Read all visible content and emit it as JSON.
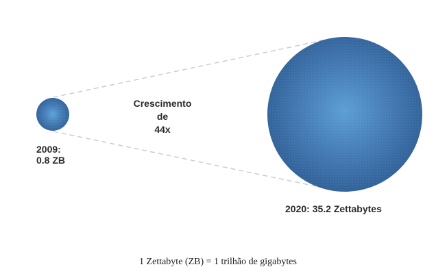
{
  "small_circle": {
    "year_label": "2009:",
    "value_label": "0.8 ZB",
    "value_zb": 0.8
  },
  "growth_label": {
    "line1": "Crescimento",
    "line2": "de",
    "line3": "44x"
  },
  "large_circle": {
    "label": "2020: 35.2 Zettabytes",
    "value_zb": 35.2
  },
  "footnote": "1 Zettabyte (ZB) = 1 trilhão de gigabytes",
  "colors": {
    "circle_fill": "#3f72ad",
    "circle_center": "#5a9bd0",
    "circle_edge": "#2f5f95",
    "connector_line": "#cccccc"
  }
}
